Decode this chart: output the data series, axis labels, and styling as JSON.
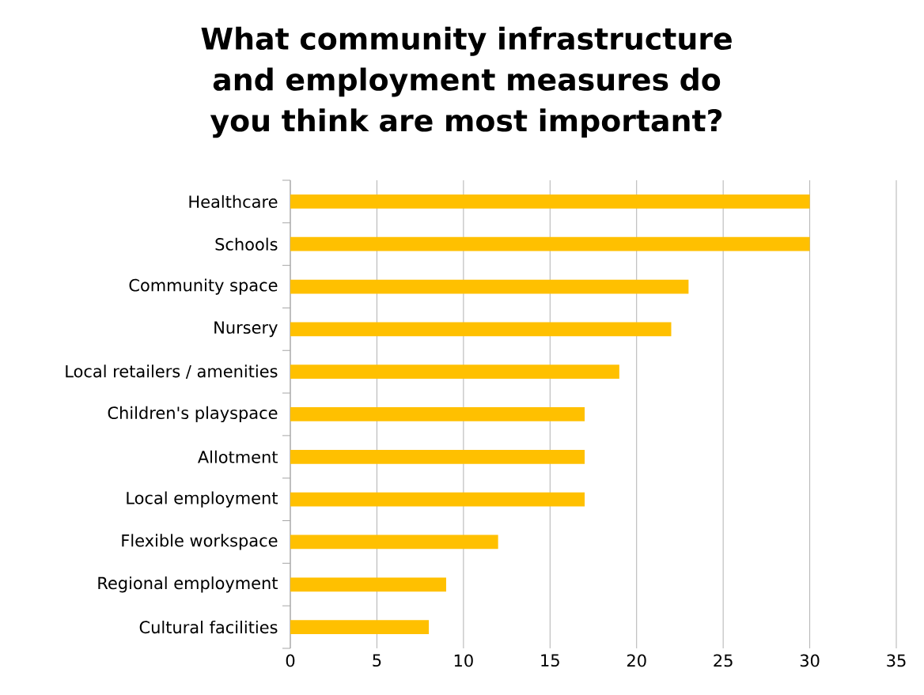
{
  "chart_data": {
    "type": "bar",
    "orientation": "horizontal",
    "title": "What community infrastructure and employment measures do you think are most important?",
    "categories": [
      "Healthcare",
      "Schools",
      "Community space",
      "Nursery",
      "Local retailers / amenities",
      "Children's playspace",
      "Allotment",
      "Local employment",
      "Flexible workspace",
      "Regional employment",
      "Cultural facilities"
    ],
    "values": [
      30,
      30,
      23,
      22,
      19,
      17,
      17,
      17,
      12,
      9,
      8
    ],
    "color": "#ffc000",
    "xlim": [
      0,
      35
    ],
    "xticks": [
      0,
      5,
      10,
      15,
      20,
      25,
      30,
      35
    ],
    "grid": "x"
  }
}
